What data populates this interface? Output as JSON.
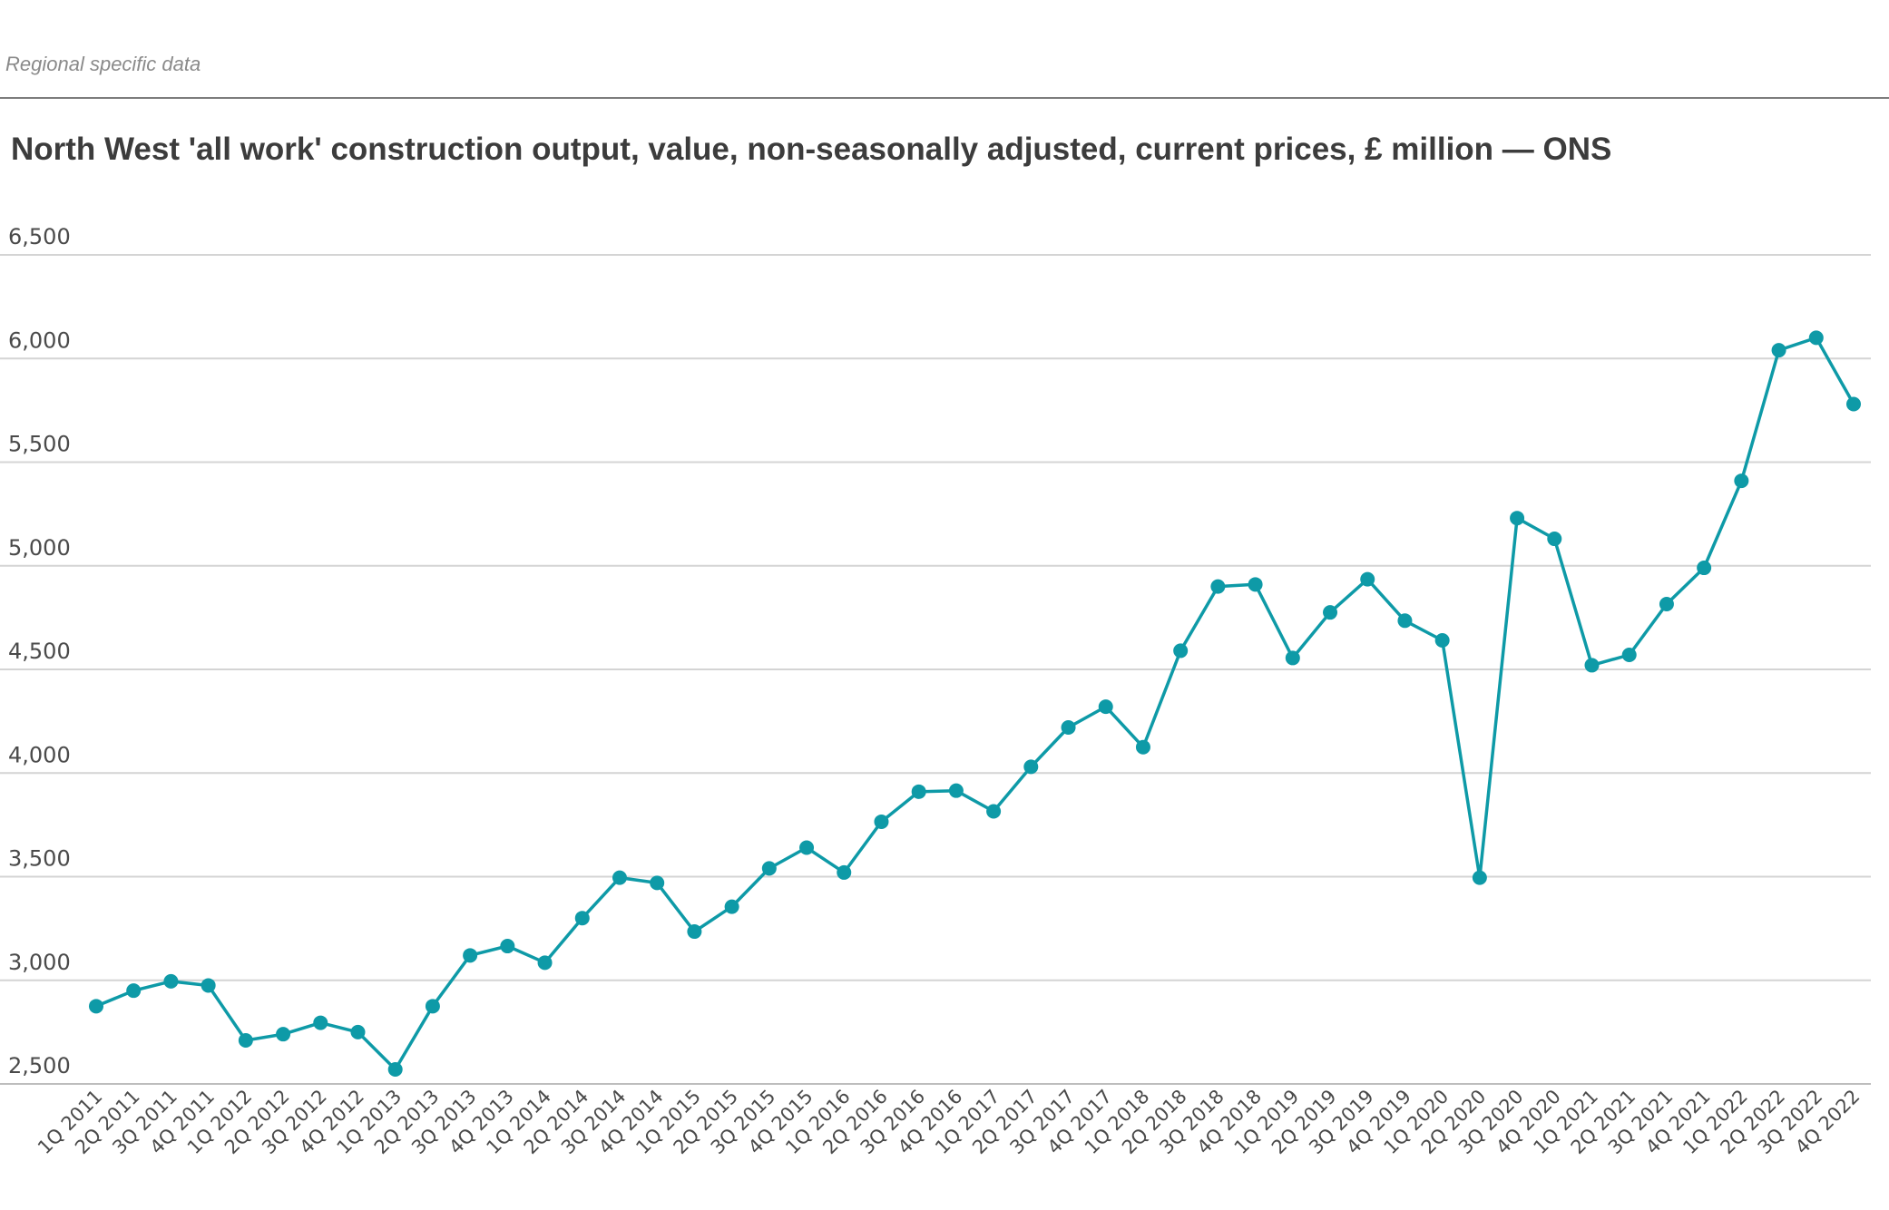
{
  "section_label": "Regional specific data",
  "chart_data": {
    "type": "line",
    "title": "North West 'all work' construction output, value, non-seasonally adjusted, current prices, £ million — ONS",
    "xlabel": "",
    "ylabel": "",
    "ylim": [
      2500,
      6500
    ],
    "yticks": [
      2500,
      3000,
      3500,
      4000,
      4500,
      5000,
      5500,
      6000,
      6500
    ],
    "ytick_labels": [
      "2,500",
      "3,000",
      "3,500",
      "4,000",
      "4,500",
      "5,000",
      "5,500",
      "6,000",
      "6,500"
    ],
    "grid": true,
    "legend": "none",
    "color": "#0e9aa7",
    "categories": [
      "1Q 2011",
      "2Q 2011",
      "3Q 2011",
      "4Q 2011",
      "1Q 2012",
      "2Q 2012",
      "3Q 2012",
      "4Q 2012",
      "1Q 2013",
      "2Q 2013",
      "3Q 2013",
      "4Q 2013",
      "1Q 2014",
      "2Q 2014",
      "3Q 2014",
      "4Q 2014",
      "1Q 2015",
      "2Q 2015",
      "3Q 2015",
      "4Q 2015",
      "1Q 2016",
      "2Q 2016",
      "3Q 2016",
      "4Q 2016",
      "1Q 2017",
      "2Q 2017",
      "3Q 2017",
      "4Q 2017",
      "1Q 2018",
      "2Q 2018",
      "3Q 2018",
      "4Q 2018",
      "1Q 2019",
      "2Q 2019",
      "3Q 2019",
      "4Q 2019",
      "1Q 2020",
      "2Q 2020",
      "3Q 2020",
      "4Q 2020",
      "1Q 2021",
      "2Q 2021",
      "3Q 2021",
      "4Q 2021",
      "1Q 2022",
      "2Q 2022",
      "3Q 2022",
      "4Q 2022"
    ],
    "values": [
      2875,
      2950,
      2995,
      2975,
      2710,
      2740,
      2795,
      2750,
      2570,
      2875,
      3120,
      3165,
      3085,
      3300,
      3495,
      3470,
      3235,
      3355,
      3540,
      3640,
      3520,
      3765,
      3910,
      3915,
      3815,
      4030,
      4220,
      4320,
      4125,
      4590,
      4900,
      4910,
      4555,
      4775,
      4935,
      4735,
      4640,
      3495,
      5230,
      5130,
      4520,
      4570,
      4815,
      4990,
      5410,
      6040,
      6100,
      5780
    ]
  }
}
